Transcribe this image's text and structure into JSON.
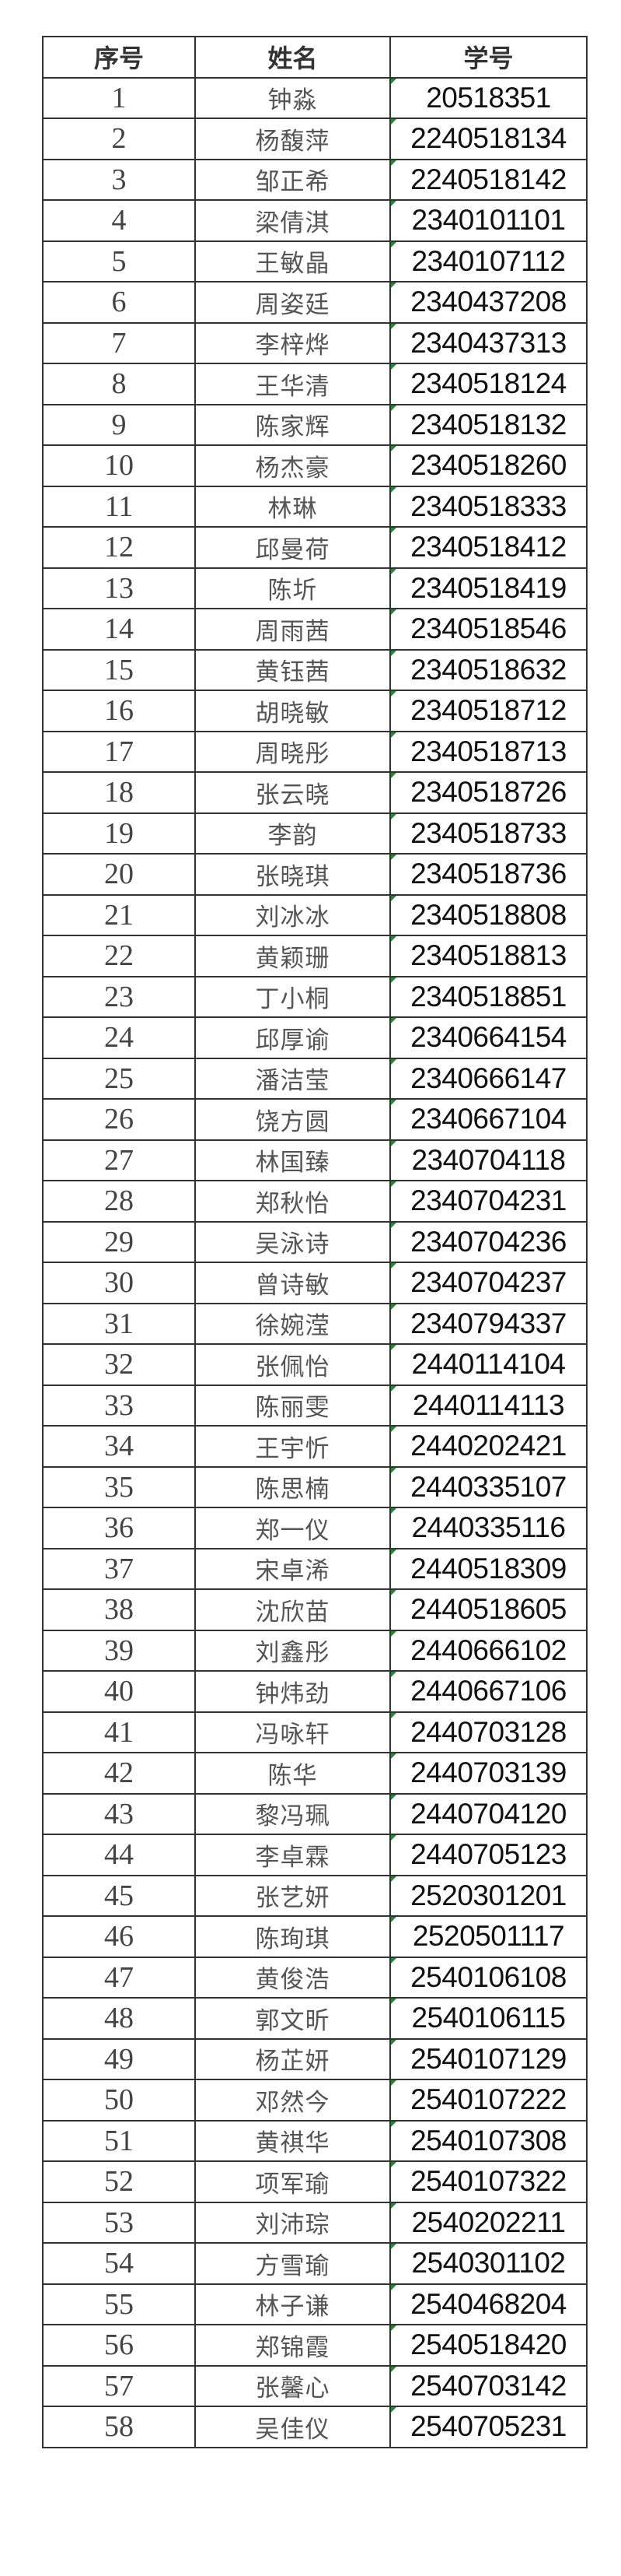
{
  "table": {
    "headers": [
      "序号",
      "姓名",
      "学号"
    ],
    "marker_color": "#1e8b2e",
    "rows": [
      {
        "no": "1",
        "name": "钟淼",
        "id": "20518351"
      },
      {
        "no": "2",
        "name": "杨馥萍",
        "id": "2240518134"
      },
      {
        "no": "3",
        "name": "邹正希",
        "id": "2240518142"
      },
      {
        "no": "4",
        "name": "梁倩淇",
        "id": "2340101101"
      },
      {
        "no": "5",
        "name": "王敏晶",
        "id": "2340107112"
      },
      {
        "no": "6",
        "name": "周姿廷",
        "id": "2340437208"
      },
      {
        "no": "7",
        "name": "李梓烨",
        "id": "2340437313"
      },
      {
        "no": "8",
        "name": "王华清",
        "id": "2340518124"
      },
      {
        "no": "9",
        "name": "陈家辉",
        "id": "2340518132"
      },
      {
        "no": "10",
        "name": "杨杰豪",
        "id": "2340518260"
      },
      {
        "no": "11",
        "name": "林琳",
        "id": "2340518333"
      },
      {
        "no": "12",
        "name": "邱曼荷",
        "id": "2340518412"
      },
      {
        "no": "13",
        "name": "陈圻",
        "id": "2340518419"
      },
      {
        "no": "14",
        "name": "周雨茜",
        "id": "2340518546"
      },
      {
        "no": "15",
        "name": "黄钰茜",
        "id": "2340518632"
      },
      {
        "no": "16",
        "name": "胡晓敏",
        "id": "2340518712"
      },
      {
        "no": "17",
        "name": "周晓彤",
        "id": "2340518713"
      },
      {
        "no": "18",
        "name": "张云晓",
        "id": "2340518726"
      },
      {
        "no": "19",
        "name": "李韵",
        "id": "2340518733"
      },
      {
        "no": "20",
        "name": "张晓琪",
        "id": "2340518736"
      },
      {
        "no": "21",
        "name": "刘冰冰",
        "id": "2340518808"
      },
      {
        "no": "22",
        "name": "黄颖珊",
        "id": "2340518813"
      },
      {
        "no": "23",
        "name": "丁小桐",
        "id": "2340518851"
      },
      {
        "no": "24",
        "name": "邱厚谕",
        "id": "2340664154"
      },
      {
        "no": "25",
        "name": "潘洁莹",
        "id": "2340666147"
      },
      {
        "no": "26",
        "name": "饶方圆",
        "id": "2340667104"
      },
      {
        "no": "27",
        "name": "林国臻",
        "id": "2340704118"
      },
      {
        "no": "28",
        "name": "郑秋怡",
        "id": "2340704231"
      },
      {
        "no": "29",
        "name": "吴泳诗",
        "id": "2340704236"
      },
      {
        "no": "30",
        "name": "曾诗敏",
        "id": "2340704237"
      },
      {
        "no": "31",
        "name": "徐婉滢",
        "id": "2340794337"
      },
      {
        "no": "32",
        "name": "张佩怡",
        "id": "2440114104"
      },
      {
        "no": "33",
        "name": "陈丽雯",
        "id": "2440114113"
      },
      {
        "no": "34",
        "name": "王宇忻",
        "id": "2440202421"
      },
      {
        "no": "35",
        "name": "陈思楠",
        "id": "2440335107"
      },
      {
        "no": "36",
        "name": "郑一仪",
        "id": "2440335116"
      },
      {
        "no": "37",
        "name": "宋卓浠",
        "id": "2440518309"
      },
      {
        "no": "38",
        "name": "沈欣苗",
        "id": "2440518605"
      },
      {
        "no": "39",
        "name": "刘鑫彤",
        "id": "2440666102"
      },
      {
        "no": "40",
        "name": "钟炜劲",
        "id": "2440667106"
      },
      {
        "no": "41",
        "name": "冯咏轩",
        "id": "2440703128"
      },
      {
        "no": "42",
        "name": "陈华",
        "id": "2440703139"
      },
      {
        "no": "43",
        "name": "黎冯珮",
        "id": "2440704120"
      },
      {
        "no": "44",
        "name": "李卓霖",
        "id": "2440705123"
      },
      {
        "no": "45",
        "name": "张艺妍",
        "id": "2520301201"
      },
      {
        "no": "46",
        "name": "陈珣琪",
        "id": "2520501117"
      },
      {
        "no": "47",
        "name": "黄俊浩",
        "id": "2540106108"
      },
      {
        "no": "48",
        "name": "郭文昕",
        "id": "2540106115"
      },
      {
        "no": "49",
        "name": "杨芷妍",
        "id": "2540107129"
      },
      {
        "no": "50",
        "name": "邓然今",
        "id": "2540107222"
      },
      {
        "no": "51",
        "name": "黄祺华",
        "id": "2540107308"
      },
      {
        "no": "52",
        "name": "项军瑜",
        "id": "2540107322"
      },
      {
        "no": "53",
        "name": "刘沛琮",
        "id": "2540202211"
      },
      {
        "no": "54",
        "name": "方雪瑜",
        "id": "2540301102"
      },
      {
        "no": "55",
        "name": "林子谦",
        "id": "2540468204"
      },
      {
        "no": "56",
        "name": "郑锦霞",
        "id": "2540518420"
      },
      {
        "no": "57",
        "name": "张馨心",
        "id": "2540703142"
      },
      {
        "no": "58",
        "name": "吴佳仪",
        "id": "2540705231"
      }
    ]
  }
}
